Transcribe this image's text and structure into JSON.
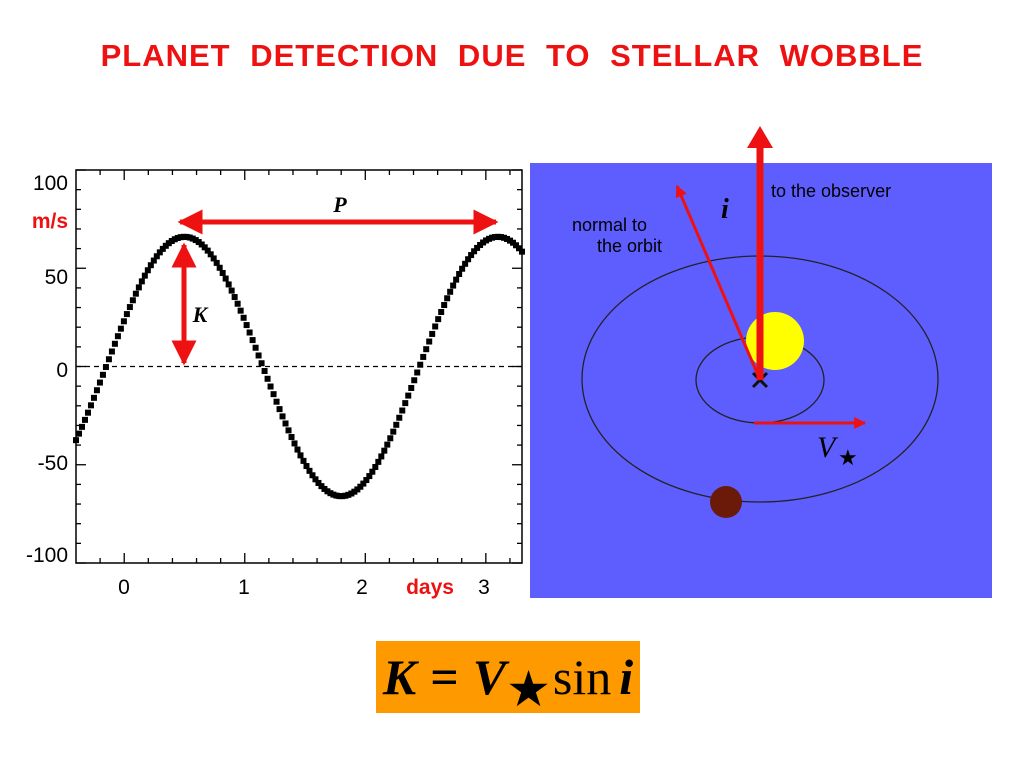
{
  "title": "PLANET DETECTION DUE TO STELLAR WOBBLE",
  "chart_data": {
    "type": "scatter",
    "ylabel": "m/s",
    "xlabel": "days",
    "y_ticks": [
      "100",
      "50",
      "0",
      "-50",
      "-100"
    ],
    "x_ticks": [
      "0",
      "1",
      "2",
      "3"
    ],
    "ylim": [
      -100,
      100
    ],
    "xlim": [
      -0.4,
      3.3
    ],
    "amplitude": 66,
    "period": 2.6,
    "phase_zero": -0.15,
    "x_start": -0.4,
    "x_end": 3.3,
    "num_points": 150,
    "zero_line": "dashed",
    "annotations": {
      "period_label": "P",
      "amplitude_label": "K"
    }
  },
  "diagram": {
    "background_color": "#5e5eff",
    "observer_label": "to the observer",
    "normal_label_line1": "normal to",
    "normal_label_line2": "the orbit",
    "inclination_label": "i",
    "velocity_label": "V",
    "velocity_star": "★",
    "star_color": "#ffff00",
    "planet_color": "#6b1a0a",
    "arrow_color": "#ee1111"
  },
  "formula": {
    "k": "K",
    "equals": "=",
    "v": "V",
    "star": "★",
    "sin": "sin",
    "i": "i"
  }
}
